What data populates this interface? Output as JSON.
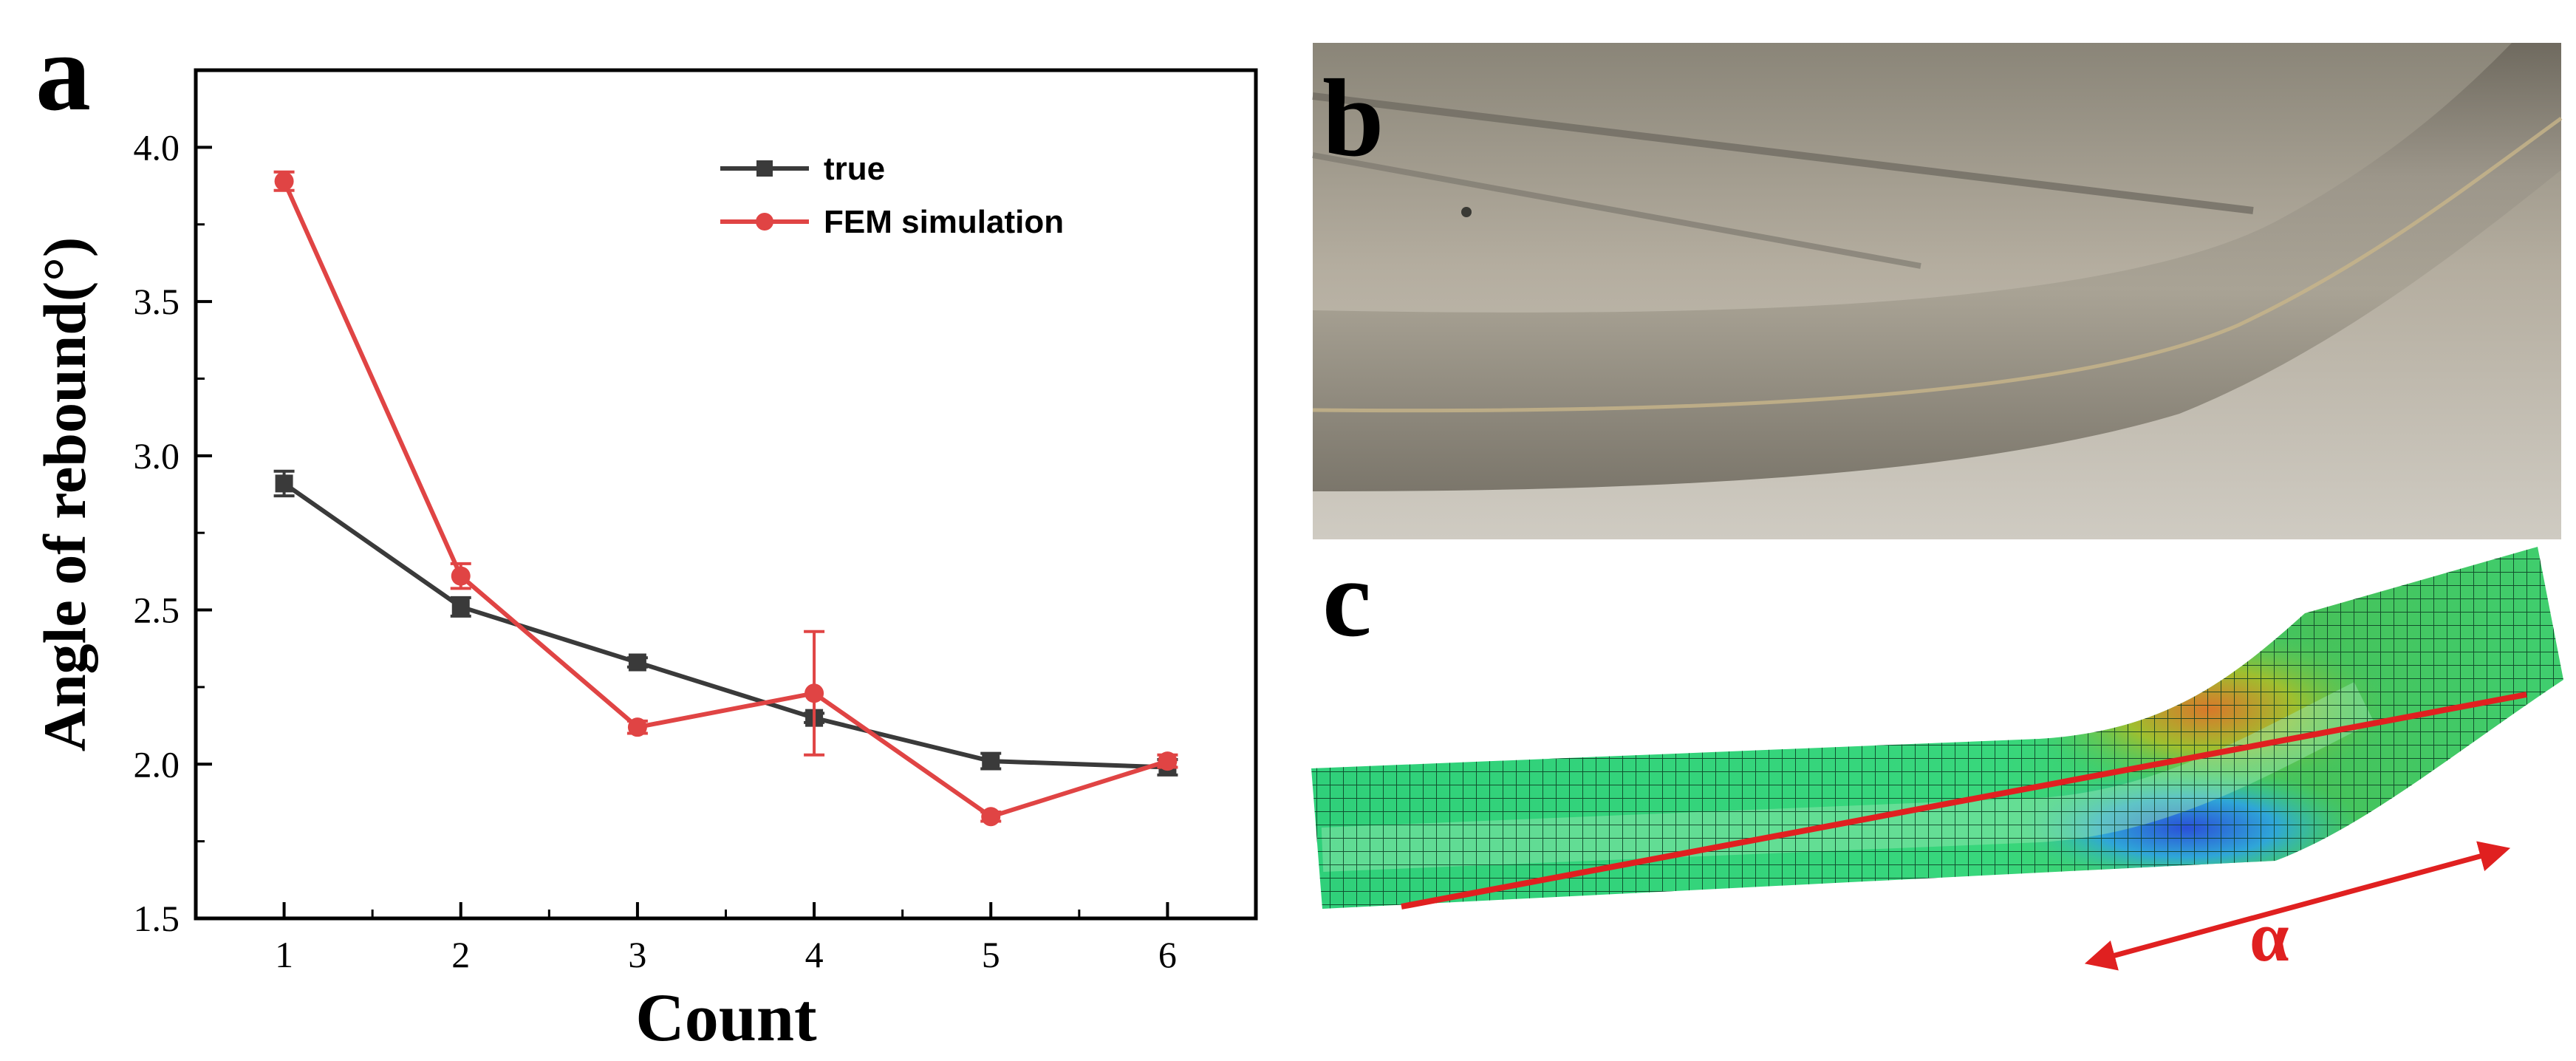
{
  "figure": {
    "panels": {
      "a": "a",
      "b": "b",
      "c": "c"
    },
    "annotation_alpha": "α",
    "colors": {
      "true_series": "#3a3a3a",
      "fem_series": "#e04444",
      "annotation_red": "#e02020"
    }
  },
  "chart_data": {
    "type": "line",
    "title": "",
    "xlabel": "Count",
    "ylabel": "Angle of rebound(°)",
    "x": [
      1,
      2,
      3,
      4,
      5,
      6
    ],
    "xlim": [
      0.5,
      6.5
    ],
    "ylim": [
      1.5,
      4.25
    ],
    "xticks": [
      "1",
      "2",
      "3",
      "4",
      "5",
      "6"
    ],
    "yticks": [
      "1.5",
      "2.0",
      "2.5",
      "3.0",
      "3.5",
      "4.0"
    ],
    "legend_position": "top-right",
    "grid": false,
    "series": [
      {
        "name": "true",
        "marker": "square",
        "values": [
          2.91,
          2.51,
          2.33,
          2.15,
          2.01,
          1.99
        ],
        "errors": [
          0.04,
          0.03,
          0.015,
          0.015,
          0.025,
          0.025
        ]
      },
      {
        "name": "FEM simulation",
        "marker": "circle",
        "values": [
          3.89,
          2.61,
          2.12,
          2.23,
          1.83,
          2.01
        ],
        "errors": [
          0.03,
          0.04,
          0.02,
          0.2,
          0.015,
          0.02
        ]
      }
    ]
  }
}
